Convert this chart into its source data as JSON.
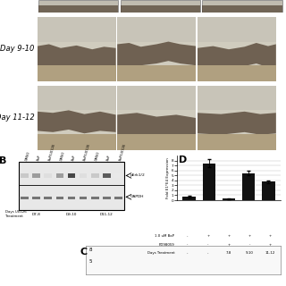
{
  "background_color": "#ffffff",
  "layout": {
    "fig_w": 3.2,
    "fig_h": 3.2,
    "dpi": 100
  },
  "tissue_colors": {
    "bg_top": "#d8d4cc",
    "bg_bottom": "#c8c0a8",
    "dark_layer": "#6a5a4a",
    "light_layer": "#b8a888",
    "border": "#888880"
  },
  "western": {
    "perk_label": "pErk1/2",
    "gapdh_label": "GAPDH",
    "col_labels": [
      "DMSO",
      "BaP",
      "BaP/U0126",
      "DMSO",
      "BaP",
      "BaP/U0126",
      "DMSO",
      "BaP",
      "BaP/U0126"
    ],
    "day_labels": [
      "D7-8",
      "D9-10",
      "D11-12"
    ],
    "perk_intensities": [
      0.25,
      0.45,
      0.15,
      0.45,
      0.85,
      0.15,
      0.25,
      0.75,
      0.1
    ],
    "gapdh_intensities": [
      0.75,
      0.75,
      0.75,
      0.75,
      0.75,
      0.75,
      0.75,
      0.75,
      0.75
    ]
  },
  "bar_chart": {
    "values": [
      0.7,
      7.5,
      0.35,
      5.5,
      3.8
    ],
    "errors": [
      0.12,
      0.85,
      0.08,
      0.4,
      0.28
    ],
    "bar_color": "#111111",
    "ylim": [
      0,
      9
    ],
    "yticks": [
      0,
      1,
      2,
      3,
      4,
      5,
      6,
      7,
      8
    ],
    "ylabel": "Fold E1*E4 Expression",
    "row1_label": "1.0 uM BaP",
    "row2_label": "PD98059",
    "row3_label": "Days Treatment",
    "row1_vals": [
      "-",
      "+",
      "+",
      "+",
      "+"
    ],
    "row2_vals": [
      "-",
      "-",
      "+",
      "-",
      "+"
    ],
    "row3_vals": [
      "-",
      "-",
      "7-8",
      "9-10",
      "11-12"
    ]
  }
}
